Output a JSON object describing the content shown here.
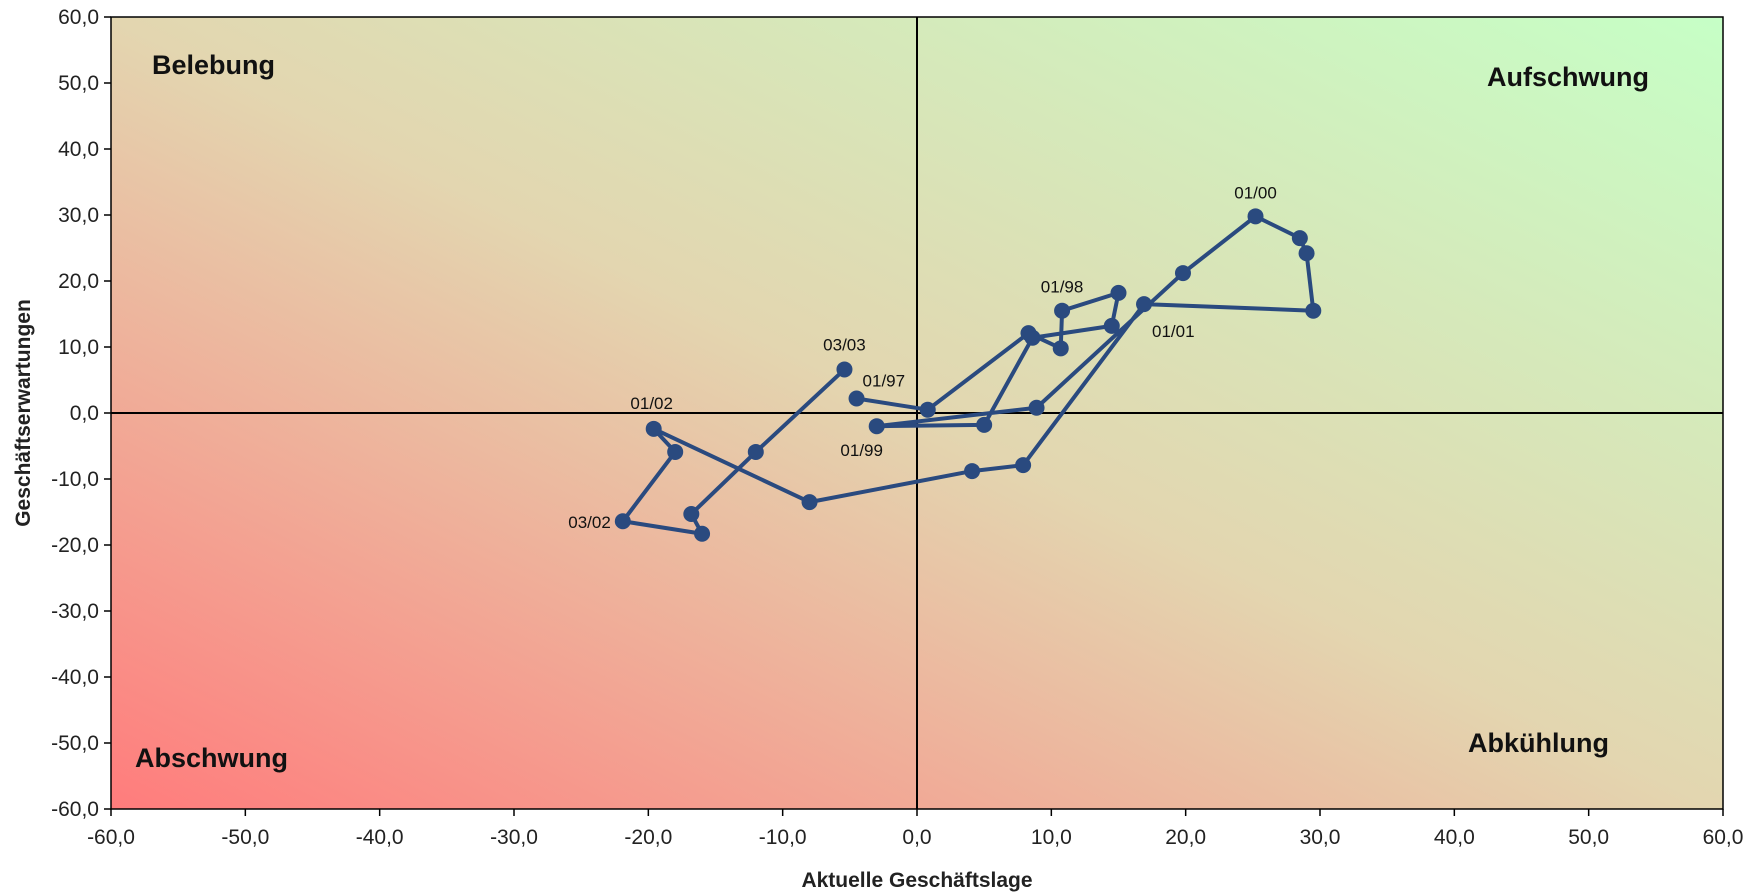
{
  "chart_data": {
    "type": "line",
    "title": "",
    "xlabel": "Aktuelle Geschäftslage",
    "ylabel": "Geschäftserwartungen",
    "xlim": [
      -60,
      60
    ],
    "ylim": [
      -60,
      60
    ],
    "xticks": [
      -60,
      -50,
      -40,
      -30,
      -20,
      -10,
      0,
      10,
      20,
      30,
      40,
      50,
      60
    ],
    "yticks": [
      60,
      50,
      40,
      30,
      20,
      10,
      0,
      -10,
      -20,
      -30,
      -40,
      -50,
      -60
    ],
    "tick_format": "comma-1-decimal",
    "grid": false,
    "legend": "none",
    "background": "diagonal gradient from red (bottom-left) to green (top-right)",
    "colors": {
      "series": "#2a4a7f",
      "gradient_low": "#ff7c7c",
      "gradient_mid": "#e3d6b0",
      "gradient_high": "#c6ffc6",
      "axis": "#000000"
    },
    "quadrants": [
      {
        "text": "Belebung",
        "position": "top-left"
      },
      {
        "text": "Aufschwung",
        "position": "top-right"
      },
      {
        "text": "Abschwung",
        "position": "bottom-left"
      },
      {
        "text": "Abkühlung",
        "position": "bottom-right"
      }
    ],
    "series": [
      {
        "points": [
          {
            "x": -4.5,
            "y": 2.2,
            "label": "01/97"
          },
          {
            "x": 0.8,
            "y": 0.5
          },
          {
            "x": 8.3,
            "y": 12.1
          },
          {
            "x": 10.7,
            "y": 9.8
          },
          {
            "x": 10.8,
            "y": 15.5,
            "label": "01/98"
          },
          {
            "x": 15.0,
            "y": 18.2
          },
          {
            "x": 14.5,
            "y": 13.2
          },
          {
            "x": 8.6,
            "y": 11.4
          },
          {
            "x": 5.0,
            "y": -1.8
          },
          {
            "x": -3.0,
            "y": -2.0,
            "label": "01/99"
          },
          {
            "x": 8.9,
            "y": 0.8
          },
          {
            "x": 19.8,
            "y": 21.2
          },
          {
            "x": 25.2,
            "y": 29.8,
            "label": "01/00"
          },
          {
            "x": 28.5,
            "y": 26.5
          },
          {
            "x": 29.0,
            "y": 24.2
          },
          {
            "x": 29.5,
            "y": 15.5
          },
          {
            "x": 16.9,
            "y": 16.5,
            "label": "01/01"
          },
          {
            "x": 7.9,
            "y": -7.9
          },
          {
            "x": 4.1,
            "y": -8.8
          },
          {
            "x": -8.0,
            "y": -13.5
          },
          {
            "x": -19.6,
            "y": -2.4,
            "label": "01/02"
          },
          {
            "x": -18.0,
            "y": -5.9
          },
          {
            "x": -21.9,
            "y": -16.4,
            "label": "03/02"
          },
          {
            "x": -16.0,
            "y": -18.3
          },
          {
            "x": -16.8,
            "y": -15.3
          },
          {
            "x": -12.0,
            "y": -5.9
          },
          {
            "x": -5.4,
            "y": 6.6,
            "label": "03/03"
          }
        ]
      }
    ]
  }
}
